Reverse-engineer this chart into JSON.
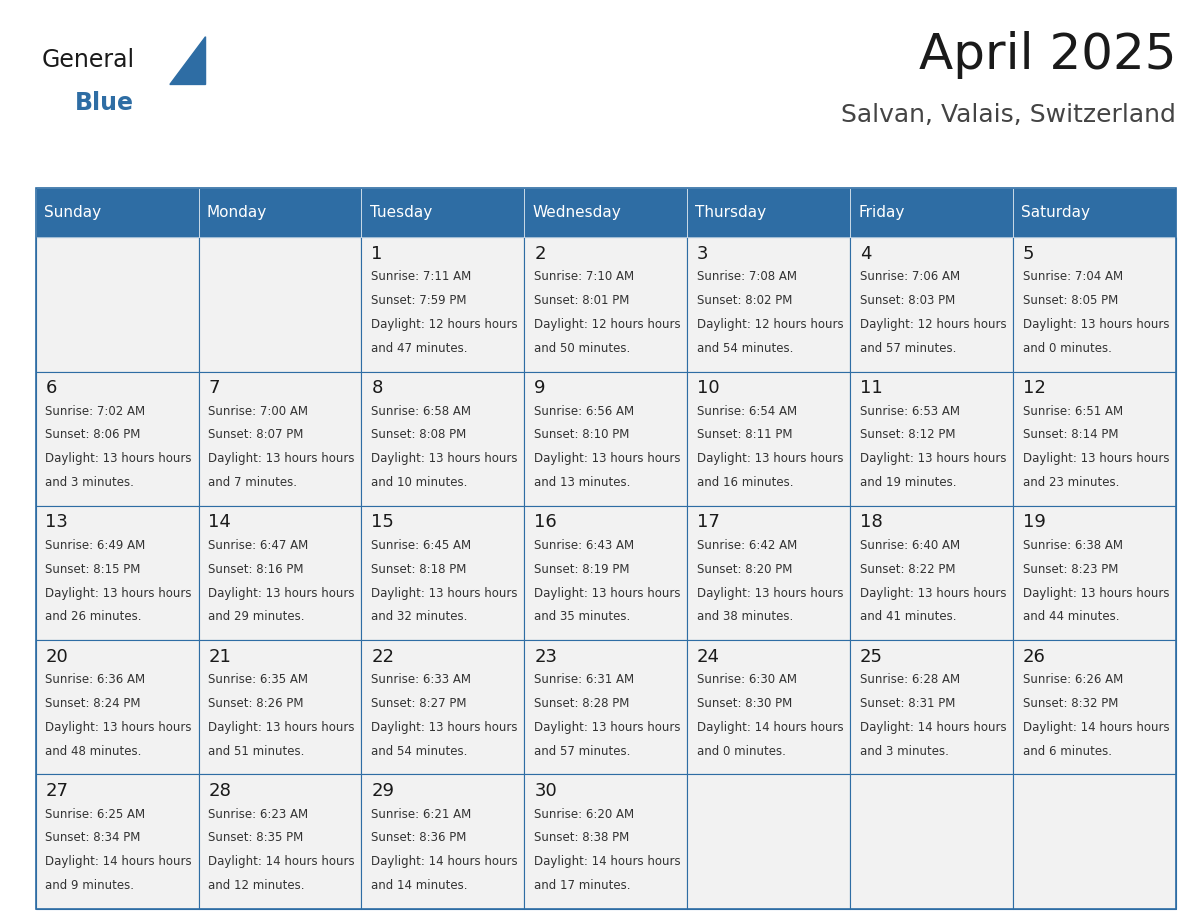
{
  "title": "April 2025",
  "subtitle": "Salvan, Valais, Switzerland",
  "header_bg_color": "#2E6DA4",
  "header_text_color": "#FFFFFF",
  "cell_bg_color": "#F2F2F2",
  "day_number_color": "#1a1a1a",
  "cell_text_color": "#333333",
  "grid_line_color": "#2E6DA4",
  "days_of_week": [
    "Sunday",
    "Monday",
    "Tuesday",
    "Wednesday",
    "Thursday",
    "Friday",
    "Saturday"
  ],
  "weeks": [
    [
      {
        "day": null,
        "sunrise": null,
        "sunset": null,
        "daylight": null
      },
      {
        "day": null,
        "sunrise": null,
        "sunset": null,
        "daylight": null
      },
      {
        "day": 1,
        "sunrise": "7:11 AM",
        "sunset": "7:59 PM",
        "daylight": "12 hours and 47 minutes"
      },
      {
        "day": 2,
        "sunrise": "7:10 AM",
        "sunset": "8:01 PM",
        "daylight": "12 hours and 50 minutes"
      },
      {
        "day": 3,
        "sunrise": "7:08 AM",
        "sunset": "8:02 PM",
        "daylight": "12 hours and 54 minutes"
      },
      {
        "day": 4,
        "sunrise": "7:06 AM",
        "sunset": "8:03 PM",
        "daylight": "12 hours and 57 minutes"
      },
      {
        "day": 5,
        "sunrise": "7:04 AM",
        "sunset": "8:05 PM",
        "daylight": "13 hours and 0 minutes"
      }
    ],
    [
      {
        "day": 6,
        "sunrise": "7:02 AM",
        "sunset": "8:06 PM",
        "daylight": "13 hours and 3 minutes"
      },
      {
        "day": 7,
        "sunrise": "7:00 AM",
        "sunset": "8:07 PM",
        "daylight": "13 hours and 7 minutes"
      },
      {
        "day": 8,
        "sunrise": "6:58 AM",
        "sunset": "8:08 PM",
        "daylight": "13 hours and 10 minutes"
      },
      {
        "day": 9,
        "sunrise": "6:56 AM",
        "sunset": "8:10 PM",
        "daylight": "13 hours and 13 minutes"
      },
      {
        "day": 10,
        "sunrise": "6:54 AM",
        "sunset": "8:11 PM",
        "daylight": "13 hours and 16 minutes"
      },
      {
        "day": 11,
        "sunrise": "6:53 AM",
        "sunset": "8:12 PM",
        "daylight": "13 hours and 19 minutes"
      },
      {
        "day": 12,
        "sunrise": "6:51 AM",
        "sunset": "8:14 PM",
        "daylight": "13 hours and 23 minutes"
      }
    ],
    [
      {
        "day": 13,
        "sunrise": "6:49 AM",
        "sunset": "8:15 PM",
        "daylight": "13 hours and 26 minutes"
      },
      {
        "day": 14,
        "sunrise": "6:47 AM",
        "sunset": "8:16 PM",
        "daylight": "13 hours and 29 minutes"
      },
      {
        "day": 15,
        "sunrise": "6:45 AM",
        "sunset": "8:18 PM",
        "daylight": "13 hours and 32 minutes"
      },
      {
        "day": 16,
        "sunrise": "6:43 AM",
        "sunset": "8:19 PM",
        "daylight": "13 hours and 35 minutes"
      },
      {
        "day": 17,
        "sunrise": "6:42 AM",
        "sunset": "8:20 PM",
        "daylight": "13 hours and 38 minutes"
      },
      {
        "day": 18,
        "sunrise": "6:40 AM",
        "sunset": "8:22 PM",
        "daylight": "13 hours and 41 minutes"
      },
      {
        "day": 19,
        "sunrise": "6:38 AM",
        "sunset": "8:23 PM",
        "daylight": "13 hours and 44 minutes"
      }
    ],
    [
      {
        "day": 20,
        "sunrise": "6:36 AM",
        "sunset": "8:24 PM",
        "daylight": "13 hours and 48 minutes"
      },
      {
        "day": 21,
        "sunrise": "6:35 AM",
        "sunset": "8:26 PM",
        "daylight": "13 hours and 51 minutes"
      },
      {
        "day": 22,
        "sunrise": "6:33 AM",
        "sunset": "8:27 PM",
        "daylight": "13 hours and 54 minutes"
      },
      {
        "day": 23,
        "sunrise": "6:31 AM",
        "sunset": "8:28 PM",
        "daylight": "13 hours and 57 minutes"
      },
      {
        "day": 24,
        "sunrise": "6:30 AM",
        "sunset": "8:30 PM",
        "daylight": "14 hours and 0 minutes"
      },
      {
        "day": 25,
        "sunrise": "6:28 AM",
        "sunset": "8:31 PM",
        "daylight": "14 hours and 3 minutes"
      },
      {
        "day": 26,
        "sunrise": "6:26 AM",
        "sunset": "8:32 PM",
        "daylight": "14 hours and 6 minutes"
      }
    ],
    [
      {
        "day": 27,
        "sunrise": "6:25 AM",
        "sunset": "8:34 PM",
        "daylight": "14 hours and 9 minutes"
      },
      {
        "day": 28,
        "sunrise": "6:23 AM",
        "sunset": "8:35 PM",
        "daylight": "14 hours and 12 minutes"
      },
      {
        "day": 29,
        "sunrise": "6:21 AM",
        "sunset": "8:36 PM",
        "daylight": "14 hours and 14 minutes"
      },
      {
        "day": 30,
        "sunrise": "6:20 AM",
        "sunset": "8:38 PM",
        "daylight": "14 hours and 17 minutes"
      },
      {
        "day": null,
        "sunrise": null,
        "sunset": null,
        "daylight": null
      },
      {
        "day": null,
        "sunrise": null,
        "sunset": null,
        "daylight": null
      },
      {
        "day": null,
        "sunrise": null,
        "sunset": null,
        "daylight": null
      }
    ]
  ],
  "logo_general_color": "#1a1a1a",
  "logo_blue_color": "#2E6DA4",
  "title_fontsize": 36,
  "subtitle_fontsize": 18,
  "header_fontsize": 11,
  "day_num_fontsize": 13,
  "cell_text_fontsize": 8.5
}
